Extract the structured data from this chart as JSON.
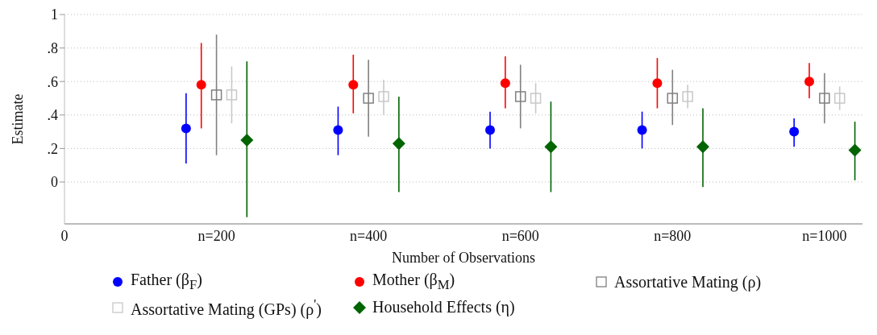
{
  "chart_data": {
    "type": "scatter",
    "xlabel": "Number of Observations",
    "ylabel": "Estimate",
    "xlim": [
      0,
      1050
    ],
    "xticks": [
      {
        "value": 0,
        "label": "0"
      },
      {
        "value": 200,
        "label": "n=200"
      },
      {
        "value": 400,
        "label": "n=400"
      },
      {
        "value": 600,
        "label": "n=600"
      },
      {
        "value": 800,
        "label": "n=800"
      },
      {
        "value": 1000,
        "label": "n=1000"
      }
    ],
    "ylim": [
      -0.25,
      1
    ],
    "yticks": [
      {
        "value": 0,
        "label": "0"
      },
      {
        "value": 0.2,
        "label": ".2"
      },
      {
        "value": 0.4,
        "label": ".4"
      },
      {
        "value": 0.6,
        "label": ".6"
      },
      {
        "value": 0.8,
        "label": ".8"
      },
      {
        "value": 1,
        "label": "1"
      }
    ],
    "grid": "y",
    "legend": "bottom",
    "series": [
      {
        "name": "Father (β$_{F}$)",
        "color": "#0000ff",
        "marker": "circle",
        "x": [
          160,
          360,
          560,
          760,
          960
        ],
        "values": [
          0.32,
          0.31,
          0.31,
          0.31,
          0.3
        ],
        "errors": [
          [
            0.11,
            0.53
          ],
          [
            0.16,
            0.45
          ],
          [
            0.2,
            0.42
          ],
          [
            0.2,
            0.42
          ],
          [
            0.21,
            0.38
          ]
        ]
      },
      {
        "name": "Mother (β$_{M}$)",
        "color": "#ff0000",
        "marker": "circle",
        "x": [
          180,
          380,
          580,
          780,
          980
        ],
        "values": [
          0.58,
          0.58,
          0.59,
          0.59,
          0.6
        ],
        "errors": [
          [
            0.32,
            0.83
          ],
          [
            0.41,
            0.76
          ],
          [
            0.44,
            0.75
          ],
          [
            0.44,
            0.74
          ],
          [
            0.5,
            0.71
          ]
        ]
      },
      {
        "name": "Assortative Mating (ρ)",
        "color": "#808080",
        "marker": "square",
        "x": [
          200,
          400,
          600,
          800,
          1000
        ],
        "values": [
          0.52,
          0.5,
          0.51,
          0.5,
          0.5
        ],
        "errors": [
          [
            0.16,
            0.88
          ],
          [
            0.27,
            0.73
          ],
          [
            0.32,
            0.7
          ],
          [
            0.34,
            0.67
          ],
          [
            0.35,
            0.65
          ]
        ]
      },
      {
        "name": "Assortative Mating (GPs) (ρ$^{'}$)",
        "color": "#c8c8c8",
        "marker": "square",
        "x": [
          220,
          420,
          620,
          820,
          1020
        ],
        "values": [
          0.52,
          0.51,
          0.5,
          0.51,
          0.5
        ],
        "errors": [
          [
            0.35,
            0.69
          ],
          [
            0.4,
            0.61
          ],
          [
            0.41,
            0.59
          ],
          [
            0.44,
            0.58
          ],
          [
            0.43,
            0.57
          ]
        ]
      },
      {
        "name": "Household Effects (η)",
        "color": "#006400",
        "marker": "diamond",
        "x": [
          240,
          440,
          640,
          840,
          1040
        ],
        "values": [
          0.25,
          0.23,
          0.21,
          0.21,
          0.19
        ],
        "errors": [
          [
            -0.21,
            0.72
          ],
          [
            -0.06,
            0.51
          ],
          [
            -0.06,
            0.48
          ],
          [
            -0.03,
            0.44
          ],
          [
            0.01,
            0.36
          ]
        ]
      }
    ]
  }
}
